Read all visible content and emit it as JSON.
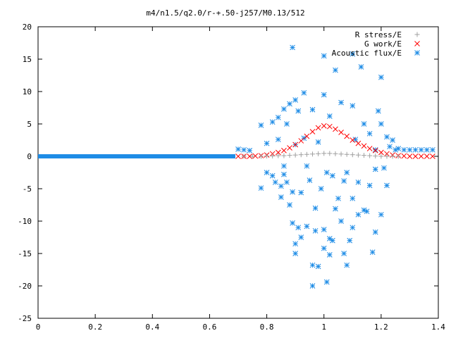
{
  "chart_data": {
    "type": "scatter",
    "title": "m4/n1.5/q2.0/r-+.50-j257/M0.13/512",
    "xlabel": "",
    "ylabel": "",
    "xlim": [
      0,
      1.4
    ],
    "ylim": [
      -25,
      20
    ],
    "x_ticks": [
      "0",
      "0.2",
      "0.4",
      "0.6",
      "0.8",
      "1",
      "1.2",
      "1.4"
    ],
    "y_ticks": [
      "20",
      "15",
      "10",
      "5",
      "0",
      "-5",
      "-10",
      "-15",
      "-20",
      "-25"
    ],
    "grid": false,
    "legend_position": "top-right",
    "series": [
      {
        "name": "R stress/E",
        "marker": "+",
        "color": "#a0a0a0",
        "points": [
          [
            0.72,
            0.0
          ],
          [
            0.75,
            0.0
          ],
          [
            0.78,
            0.0
          ],
          [
            0.8,
            0.05
          ],
          [
            0.82,
            0.05
          ],
          [
            0.84,
            0.1
          ],
          [
            0.86,
            0.1
          ],
          [
            0.88,
            0.15
          ],
          [
            0.9,
            0.2
          ],
          [
            0.92,
            0.25
          ],
          [
            0.94,
            0.3
          ],
          [
            0.96,
            0.35
          ],
          [
            0.98,
            0.4
          ],
          [
            1.0,
            0.45
          ],
          [
            1.02,
            0.45
          ],
          [
            1.04,
            0.4
          ],
          [
            1.06,
            0.35
          ],
          [
            1.08,
            0.3
          ],
          [
            1.1,
            0.25
          ],
          [
            1.12,
            0.2
          ],
          [
            1.14,
            0.15
          ],
          [
            1.16,
            0.1
          ],
          [
            1.18,
            0.05
          ],
          [
            1.2,
            0.0
          ],
          [
            1.22,
            0.0
          ],
          [
            1.24,
            0.0
          ],
          [
            1.26,
            0.0
          ]
        ]
      },
      {
        "name": "G work/E",
        "marker": "x",
        "color": "#ff0000",
        "points": [
          [
            0.7,
            0.0
          ],
          [
            0.72,
            0.0
          ],
          [
            0.74,
            0.0
          ],
          [
            0.76,
            0.05
          ],
          [
            0.78,
            0.1
          ],
          [
            0.8,
            0.2
          ],
          [
            0.82,
            0.4
          ],
          [
            0.84,
            0.6
          ],
          [
            0.86,
            0.9
          ],
          [
            0.88,
            1.3
          ],
          [
            0.9,
            1.8
          ],
          [
            0.92,
            2.4
          ],
          [
            0.94,
            3.1
          ],
          [
            0.96,
            3.8
          ],
          [
            0.98,
            4.4
          ],
          [
            1.0,
            4.7
          ],
          [
            1.02,
            4.6
          ],
          [
            1.04,
            4.2
          ],
          [
            1.06,
            3.7
          ],
          [
            1.08,
            3.1
          ],
          [
            1.1,
            2.5
          ],
          [
            1.12,
            2.0
          ],
          [
            1.14,
            1.6
          ],
          [
            1.16,
            1.2
          ],
          [
            1.18,
            0.9
          ],
          [
            1.2,
            0.6
          ],
          [
            1.22,
            0.4
          ],
          [
            1.24,
            0.2
          ],
          [
            1.26,
            0.1
          ],
          [
            1.28,
            0.05
          ],
          [
            1.3,
            0.0
          ],
          [
            1.32,
            0.0
          ],
          [
            1.34,
            0.0
          ],
          [
            1.36,
            0.0
          ],
          [
            1.38,
            0.0
          ]
        ]
      },
      {
        "name": "Acoustic flux/E",
        "marker": "*",
        "color": "#1e8ce6",
        "baseline": {
          "x_start": 0.0,
          "x_end": 0.69,
          "y": 0.0
        },
        "points": [
          [
            0.7,
            1.1
          ],
          [
            0.72,
            1.0
          ],
          [
            0.74,
            0.9
          ],
          [
            0.78,
            4.8
          ],
          [
            0.78,
            -4.9
          ],
          [
            0.8,
            2.0
          ],
          [
            0.8,
            -2.5
          ],
          [
            0.82,
            5.3
          ],
          [
            0.82,
            -3.0
          ],
          [
            0.83,
            -4.0
          ],
          [
            0.84,
            2.6
          ],
          [
            0.84,
            6.0
          ],
          [
            0.85,
            -4.6
          ],
          [
            0.85,
            -6.3
          ],
          [
            0.86,
            7.3
          ],
          [
            0.86,
            -2.8
          ],
          [
            0.86,
            -1.5
          ],
          [
            0.87,
            -4.0
          ],
          [
            0.87,
            5.0
          ],
          [
            0.88,
            8.1
          ],
          [
            0.88,
            -7.5
          ],
          [
            0.89,
            16.8
          ],
          [
            0.89,
            -5.5
          ],
          [
            0.89,
            -10.3
          ],
          [
            0.9,
            8.7
          ],
          [
            0.9,
            1.8
          ],
          [
            0.9,
            -13.5
          ],
          [
            0.9,
            -15.0
          ],
          [
            0.91,
            7.0
          ],
          [
            0.91,
            -11.0
          ],
          [
            0.92,
            -12.5
          ],
          [
            0.92,
            -5.6
          ],
          [
            0.93,
            9.8
          ],
          [
            0.93,
            2.8
          ],
          [
            0.94,
            -10.8
          ],
          [
            0.94,
            -1.5
          ],
          [
            0.95,
            -3.7
          ],
          [
            0.96,
            7.2
          ],
          [
            0.96,
            -16.8
          ],
          [
            0.96,
            -20.0
          ],
          [
            0.97,
            -8.0
          ],
          [
            0.97,
            -11.5
          ],
          [
            0.98,
            2.2
          ],
          [
            0.98,
            -17.0
          ],
          [
            0.99,
            -5.0
          ],
          [
            1.0,
            9.5
          ],
          [
            1.0,
            15.5
          ],
          [
            1.0,
            -11.3
          ],
          [
            1.0,
            -14.2
          ],
          [
            1.01,
            -19.4
          ],
          [
            1.01,
            -2.5
          ],
          [
            1.02,
            6.2
          ],
          [
            1.02,
            -12.7
          ],
          [
            1.02,
            -15.2
          ],
          [
            1.03,
            -13.0
          ],
          [
            1.03,
            -3.0
          ],
          [
            1.04,
            13.3
          ],
          [
            1.04,
            -8.1
          ],
          [
            1.05,
            -6.5
          ],
          [
            1.06,
            8.3
          ],
          [
            1.06,
            -10.0
          ],
          [
            1.07,
            -3.8
          ],
          [
            1.07,
            -15.0
          ],
          [
            1.08,
            -2.5
          ],
          [
            1.08,
            -16.8
          ],
          [
            1.09,
            -13.0
          ],
          [
            1.1,
            7.8
          ],
          [
            1.1,
            -6.5
          ],
          [
            1.1,
            -11.0
          ],
          [
            1.1,
            15.8
          ],
          [
            1.11,
            2.6
          ],
          [
            1.12,
            -4.0
          ],
          [
            1.12,
            -9.0
          ],
          [
            1.13,
            13.8
          ],
          [
            1.14,
            5.0
          ],
          [
            1.14,
            -8.3
          ],
          [
            1.15,
            -8.5
          ],
          [
            1.16,
            3.5
          ],
          [
            1.16,
            -4.5
          ],
          [
            1.17,
            -14.8
          ],
          [
            1.18,
            1.0
          ],
          [
            1.18,
            -11.7
          ],
          [
            1.18,
            -2.0
          ],
          [
            1.19,
            7.0
          ],
          [
            1.2,
            -9.0
          ],
          [
            1.2,
            5.0
          ],
          [
            1.2,
            12.2
          ],
          [
            1.21,
            -1.8
          ],
          [
            1.22,
            3.0
          ],
          [
            1.22,
            -4.5
          ],
          [
            1.23,
            1.5
          ],
          [
            1.24,
            2.5
          ],
          [
            1.25,
            1.0
          ],
          [
            1.26,
            1.2
          ],
          [
            1.28,
            1.0
          ],
          [
            1.3,
            1.0
          ],
          [
            1.32,
            1.0
          ],
          [
            1.34,
            1.0
          ],
          [
            1.36,
            1.0
          ],
          [
            1.38,
            1.0
          ]
        ]
      }
    ]
  }
}
